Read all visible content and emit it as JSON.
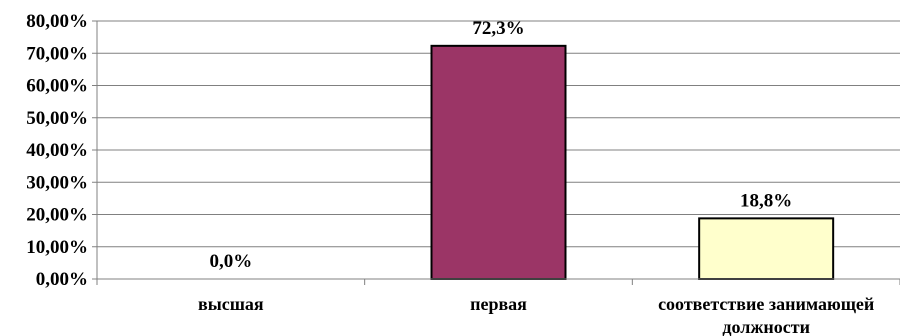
{
  "chart_data": {
    "type": "bar",
    "categories": [
      "высшая",
      "первая",
      "соответствие занимающей должности"
    ],
    "category_lines": [
      [
        "высшая"
      ],
      [
        "первая"
      ],
      [
        "соответствие занимающей",
        "должности"
      ]
    ],
    "values": [
      0.0,
      72.3,
      18.8
    ],
    "data_labels": [
      "0,0%",
      "72,3%",
      "18,8%"
    ],
    "bar_colors": [
      "#9b3566",
      "#9b3566",
      "#ffffcc"
    ],
    "ylim": [
      0,
      80
    ],
    "yticks": [
      0,
      10,
      20,
      30,
      40,
      50,
      60,
      70,
      80
    ],
    "ytick_labels": [
      "0,00%",
      "10,00%",
      "20,00%",
      "30,00%",
      "40,00%",
      "50,00%",
      "60,00%",
      "70,00%",
      "80,00%"
    ],
    "grid": true,
    "legend": false,
    "title": "",
    "xlabel": "",
    "ylabel": ""
  }
}
